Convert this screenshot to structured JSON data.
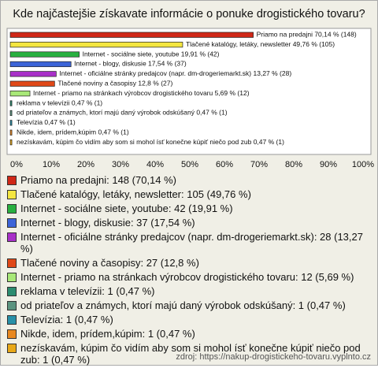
{
  "chart_data": {
    "type": "hbar",
    "title": "Kde najčastejšie získavate informácie o ponuke drogistického tovaru?",
    "categories": [
      "Priamo na predajni: 148 (70,14 %)",
      "Tlačené katalógy, letáky, newsletter: 105 (49,76 %)",
      "Internet - sociálne siete, youtube: 42 (19,91 %)",
      "Internet - blogy, diskusie: 37 (17,54 %)",
      "Internet - oficiálne stránky predajcov (napr. dm-drogeriemarkt.sk): 28 (13,27 %)",
      "Tlačené noviny a časopisy: 27 (12,8 %)",
      "Internet - priamo na stránkach výrobcov drogistického tovaru: 12 (5,69 %)",
      "reklama v televízii: 1 (0,47 %)",
      "od priateľov a známych, ktorí majú daný výrobok odskúšaný: 1 (0,47 %)",
      "Televízia: 1 (0,47 %)",
      "Nikde, idem, prídem,kúpim: 1 (0,47 %)",
      "nezískavám, kúpim čo vidím aby som si mohol ísť konečne kúpiť niečo pod zub: 1 (0,47 %)"
    ],
    "values": [
      70.14,
      49.76,
      19.91,
      17.54,
      13.27,
      12.8,
      5.69,
      0.47,
      0.47,
      0.47,
      0.47,
      0.47
    ],
    "value_labels": [
      "Priamo na predajni 70,14 % (148)",
      "Tlačené katalógy, letáky, newsletter 49,76 % (105)",
      "Internet - sociálne siete, youtube 19,91 % (42)",
      "Internet - blogy, diskusie 17,54 % (37)",
      "Internet - oficiálne stránky predajcov (napr. dm-drogeriemarkt.sk) 13,27 % (28)",
      "Tlačené noviny a časopisy 12,8 % (27)",
      "Internet - priamo na stránkach výrobcov drogistického tovaru 5,69 % (12)",
      "reklama v televízii 0,47 % (1)",
      "od priateľov a známych, ktorí majú daný výrobok odskúšaný 0,47 % (1)",
      "Televízia 0,47 % (1)",
      "Nikde, idem, prídem,kúpim 0,47 % (1)",
      "nezískavám, kúpim čo vidím aby som si mohol ísť konečne kúpiť niečo pod zub 0,47 % (1)"
    ],
    "colors": [
      "#d02818",
      "#f4e640",
      "#28b040",
      "#3c64d8",
      "#a830c8",
      "#e04818",
      "#a8e878",
      "#2c8c70",
      "#5c9480",
      "#2890a8",
      "#e88820",
      "#e8a818"
    ],
    "xlim": [
      0,
      100
    ],
    "xticks": [
      {
        "value": 0,
        "label": "0%"
      },
      {
        "value": 10,
        "label": "10%"
      },
      {
        "value": 20,
        "label": "20%"
      },
      {
        "value": 30,
        "label": "30%"
      },
      {
        "value": 40,
        "label": "40%"
      },
      {
        "value": 50,
        "label": "50%"
      },
      {
        "value": 60,
        "label": "60%"
      },
      {
        "value": 70,
        "label": "70%"
      },
      {
        "value": 80,
        "label": "80%"
      },
      {
        "value": 90,
        "label": "90%"
      },
      {
        "value": 100,
        "label": "100%"
      }
    ],
    "source": "zdroj: https://nakup-drogistickeho-tovaru.vyplnto.cz"
  }
}
